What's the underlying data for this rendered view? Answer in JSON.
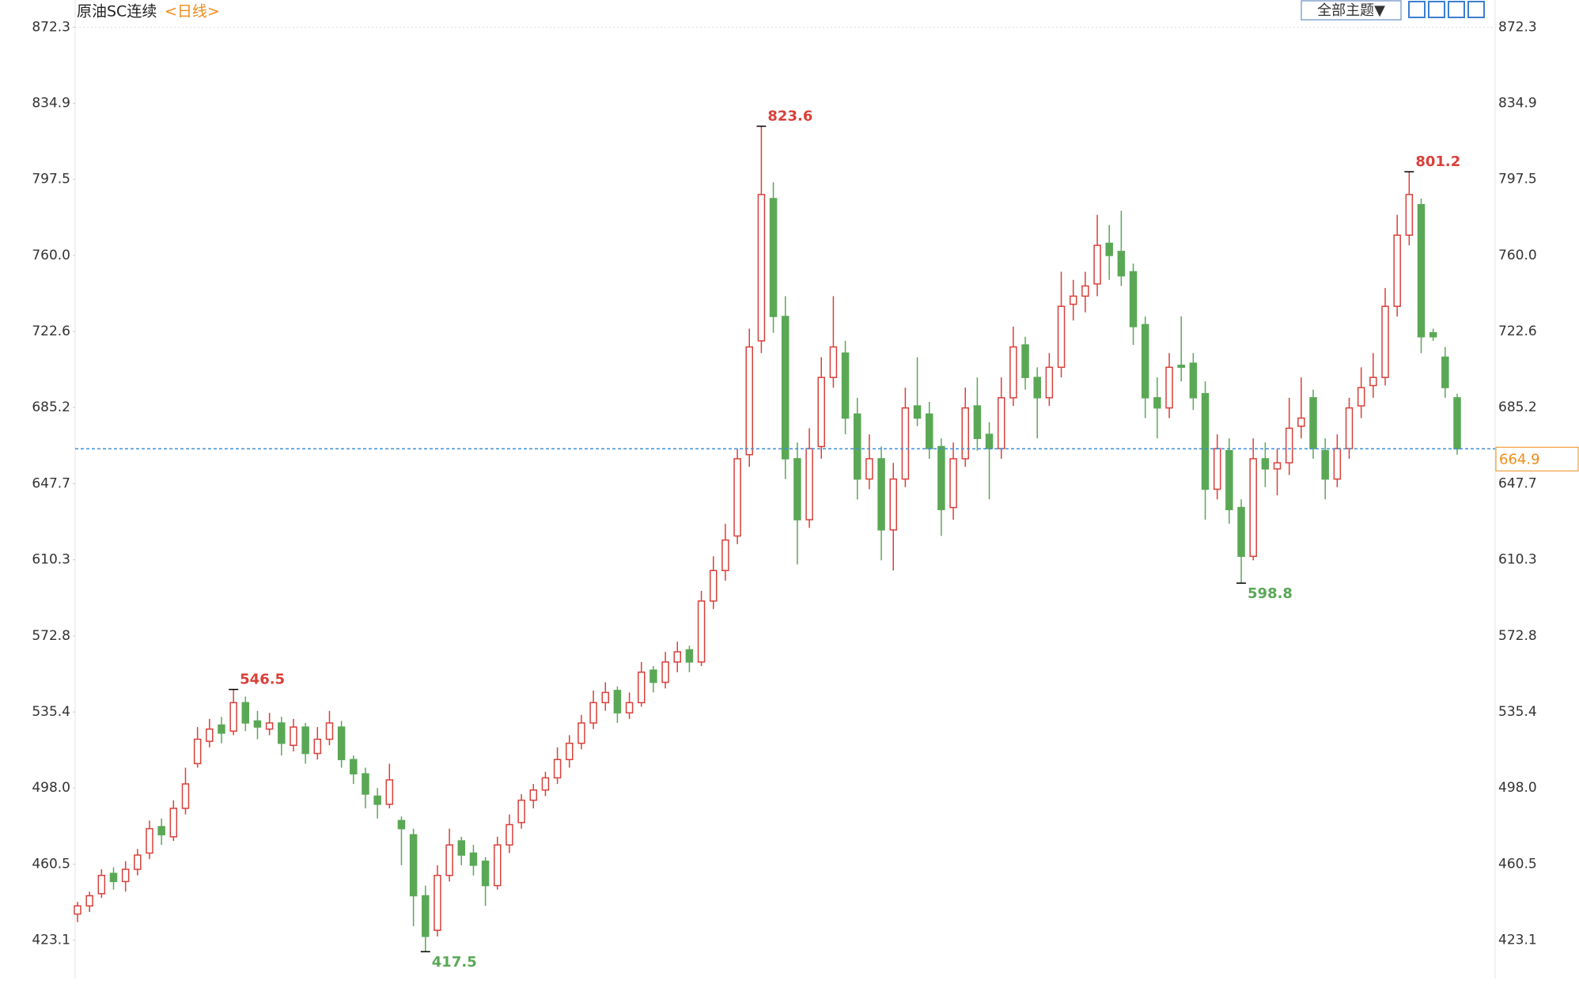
{
  "chart_data": {
    "type": "candlestick",
    "title": "原油SC连续",
    "period": "<日线>",
    "theme_button": "全部主题▼",
    "up_color": "#d9403a",
    "down_color": "#5aa856",
    "ylim": [
      404.3,
      885.7
    ],
    "yticks": [
      423.1,
      460.5,
      {
        "value": 498,
        "label": "498.0"
      },
      535.4,
      572.8,
      610.3,
      647.7,
      685.2,
      {
        "value": 760,
        "label": "760.0"
      },
      722.6,
      797.5,
      834.9,
      872.3
    ],
    "last": 664.9,
    "annotations": [
      546.5,
      417.5,
      823.6,
      598.8,
      801.2
    ],
    "candles": [
      [
        436,
        442,
        432,
        440
      ],
      [
        440,
        447,
        437,
        445
      ],
      [
        446,
        458,
        444,
        455
      ],
      [
        456,
        459,
        448,
        452
      ],
      [
        452,
        462,
        447,
        458
      ],
      [
        458,
        468,
        455,
        465
      ],
      [
        466,
        482,
        463,
        478
      ],
      [
        479,
        483,
        470,
        475
      ],
      [
        474,
        492,
        472,
        488
      ],
      [
        488,
        508,
        485,
        500
      ],
      [
        510,
        528,
        508,
        522
      ],
      [
        521,
        532,
        518,
        527
      ],
      [
        529,
        533,
        520,
        525
      ],
      [
        526,
        546.5,
        524,
        540
      ],
      [
        540,
        543,
        526,
        530
      ],
      [
        531,
        536,
        522,
        528
      ],
      [
        527,
        535,
        524,
        530
      ],
      [
        530,
        533,
        514,
        520
      ],
      [
        519,
        532,
        516,
        528
      ],
      [
        528,
        530,
        510,
        515
      ],
      [
        515,
        528,
        512,
        522
      ],
      [
        522,
        536,
        519,
        530
      ],
      [
        528,
        531,
        508,
        512
      ],
      [
        512,
        514,
        500,
        505
      ],
      [
        505,
        508,
        488,
        495
      ],
      [
        494,
        498,
        483,
        490
      ],
      [
        490,
        510,
        488,
        502
      ],
      [
        482,
        484,
        460,
        478
      ],
      [
        475,
        478,
        430,
        445
      ],
      [
        445,
        450,
        417.5,
        425
      ],
      [
        428,
        460,
        425,
        455
      ],
      [
        455,
        478,
        452,
        470
      ],
      [
        472,
        474,
        460,
        465
      ],
      [
        466,
        470,
        455,
        460
      ],
      [
        462,
        464,
        440,
        450
      ],
      [
        450,
        474,
        448,
        470
      ],
      [
        470,
        485,
        466,
        480
      ],
      [
        481,
        495,
        478,
        492
      ],
      [
        492,
        500,
        488,
        497
      ],
      [
        497,
        506,
        494,
        503
      ],
      [
        503,
        518,
        500,
        512
      ],
      [
        512,
        524,
        508,
        520
      ],
      [
        520,
        534,
        517,
        530
      ],
      [
        530,
        546,
        527,
        540
      ],
      [
        540,
        550,
        536,
        545
      ],
      [
        546,
        548,
        530,
        535
      ],
      [
        535,
        545,
        532,
        540
      ],
      [
        540,
        560,
        538,
        555
      ],
      [
        556,
        558,
        545,
        550
      ],
      [
        550,
        565,
        547,
        560
      ],
      [
        560,
        570,
        555,
        565
      ],
      [
        566,
        568,
        555,
        560
      ],
      [
        560,
        595,
        558,
        590
      ],
      [
        590,
        612,
        586,
        605
      ],
      [
        605,
        628,
        600,
        620
      ],
      [
        622,
        665,
        618,
        660
      ],
      [
        662,
        724,
        656,
        715
      ],
      [
        718,
        823.6,
        712,
        790
      ],
      [
        788,
        796,
        722,
        730
      ],
      [
        730,
        740,
        650,
        660
      ],
      [
        660,
        668,
        608,
        630
      ],
      [
        630,
        675,
        626,
        665
      ],
      [
        666,
        710,
        660,
        700
      ],
      [
        700,
        740,
        695,
        715
      ],
      [
        712,
        718,
        672,
        680
      ],
      [
        682,
        690,
        640,
        650
      ],
      [
        650,
        672,
        645,
        660
      ],
      [
        660,
        666,
        610,
        625
      ],
      [
        625,
        658,
        605,
        650
      ],
      [
        650,
        695,
        646,
        685
      ],
      [
        686,
        710,
        676,
        680
      ],
      [
        682,
        688,
        660,
        665
      ],
      [
        666,
        670,
        622,
        635
      ],
      [
        636,
        668,
        630,
        660
      ],
      [
        660,
        695,
        656,
        685
      ],
      [
        686,
        700,
        664,
        670
      ],
      [
        672,
        678,
        640,
        665
      ],
      [
        665,
        700,
        660,
        690
      ],
      [
        690,
        725,
        686,
        715
      ],
      [
        716,
        720,
        694,
        700
      ],
      [
        700,
        705,
        670,
        690
      ],
      [
        690,
        712,
        686,
        705
      ],
      [
        705,
        752,
        700,
        735
      ],
      [
        736,
        748,
        728,
        740
      ],
      [
        740,
        752,
        732,
        745
      ],
      [
        746,
        780,
        740,
        765
      ],
      [
        766,
        775,
        748,
        760
      ],
      [
        762,
        782,
        745,
        750
      ],
      [
        752,
        756,
        716,
        725
      ],
      [
        726,
        730,
        680,
        690
      ],
      [
        690,
        700,
        670,
        685
      ],
      [
        685,
        712,
        680,
        705
      ],
      [
        706,
        730,
        698,
        705
      ],
      [
        707,
        712,
        684,
        690
      ],
      [
        692,
        698,
        630,
        645
      ],
      [
        645,
        672,
        640,
        665
      ],
      [
        664,
        670,
        628,
        635
      ],
      [
        636,
        640,
        598.8,
        612
      ],
      [
        612,
        670,
        610,
        660
      ],
      [
        660,
        668,
        646,
        655
      ],
      [
        655,
        665,
        642,
        658
      ],
      [
        658,
        690,
        652,
        675
      ],
      [
        676,
        700,
        670,
        680
      ],
      [
        690,
        694,
        660,
        665
      ],
      [
        664,
        670,
        640,
        650
      ],
      [
        650,
        672,
        646,
        665
      ],
      [
        665,
        690,
        660,
        685
      ],
      [
        686,
        705,
        680,
        695
      ],
      [
        696,
        712,
        690,
        700
      ],
      [
        700,
        744,
        696,
        735
      ],
      [
        735,
        780,
        730,
        770
      ],
      [
        770,
        801.2,
        765,
        790
      ],
      [
        785,
        788,
        712,
        720
      ],
      [
        722,
        724,
        718,
        720
      ],
      [
        710,
        715,
        690,
        695
      ],
      [
        690,
        692,
        662,
        664.9
      ]
    ]
  }
}
